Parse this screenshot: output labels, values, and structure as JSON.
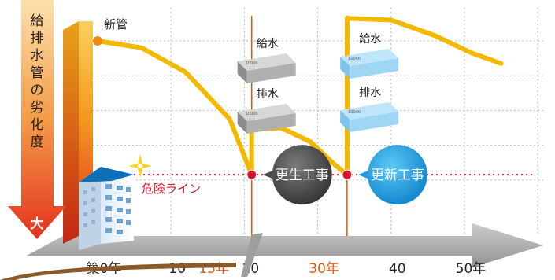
{
  "chart_data": {
    "type": "line",
    "y_axis_label_chars": [
      "給",
      "排",
      "水",
      "管",
      "の",
      "劣",
      "化",
      "度"
    ],
    "y_axis_bottom_label": "大",
    "x_ticks": [
      {
        "label": "築0年",
        "x": 0,
        "color": "#222222"
      },
      {
        "label": "10",
        "x": 10,
        "color": "#222222"
      },
      {
        "label": "15年",
        "x": 15,
        "color": "#e2570f"
      },
      {
        "label": "20",
        "x": 20,
        "color": "#222222"
      },
      {
        "label": "30年",
        "x": 30,
        "color": "#e2570f"
      },
      {
        "label": "40",
        "x": 40,
        "color": "#222222"
      },
      {
        "label": "50年",
        "x": 50,
        "color": "#222222"
      }
    ],
    "xlim": [
      0,
      50
    ],
    "series": [
      {
        "values": [
          [
            0,
            100
          ],
          [
            6,
            96
          ],
          [
            12,
            82
          ],
          [
            18,
            55
          ],
          [
            21,
            23
          ]
        ]
      },
      {
        "values": [
          [
            21,
            23
          ],
          [
            21,
            49
          ],
          [
            25,
            50
          ],
          [
            29,
            42
          ],
          [
            32,
            30
          ],
          [
            34,
            23
          ]
        ]
      },
      {
        "values": [
          [
            34,
            23
          ],
          [
            34,
            113
          ],
          [
            40,
            112
          ],
          [
            46,
            103
          ],
          [
            51,
            93
          ],
          [
            55,
            87
          ]
        ]
      }
    ],
    "danger_line": {
      "label": "危険ライン",
      "y": 23,
      "color": "#d8172a"
    },
    "events": [
      {
        "label": "更生工事",
        "x": 21,
        "color": "#4d4d4d"
      },
      {
        "label": "更新工事",
        "x": 34,
        "color": "#1a9ee3"
      }
    ],
    "annotations": {
      "new_pipe": "新管",
      "supply": "給水",
      "drain": "排水",
      "bill_value": "10000"
    },
    "colors": {
      "line": "#f2b900",
      "accent": "#e2570f",
      "danger": "#d8172a",
      "ground": "#a6a6a6"
    }
  }
}
